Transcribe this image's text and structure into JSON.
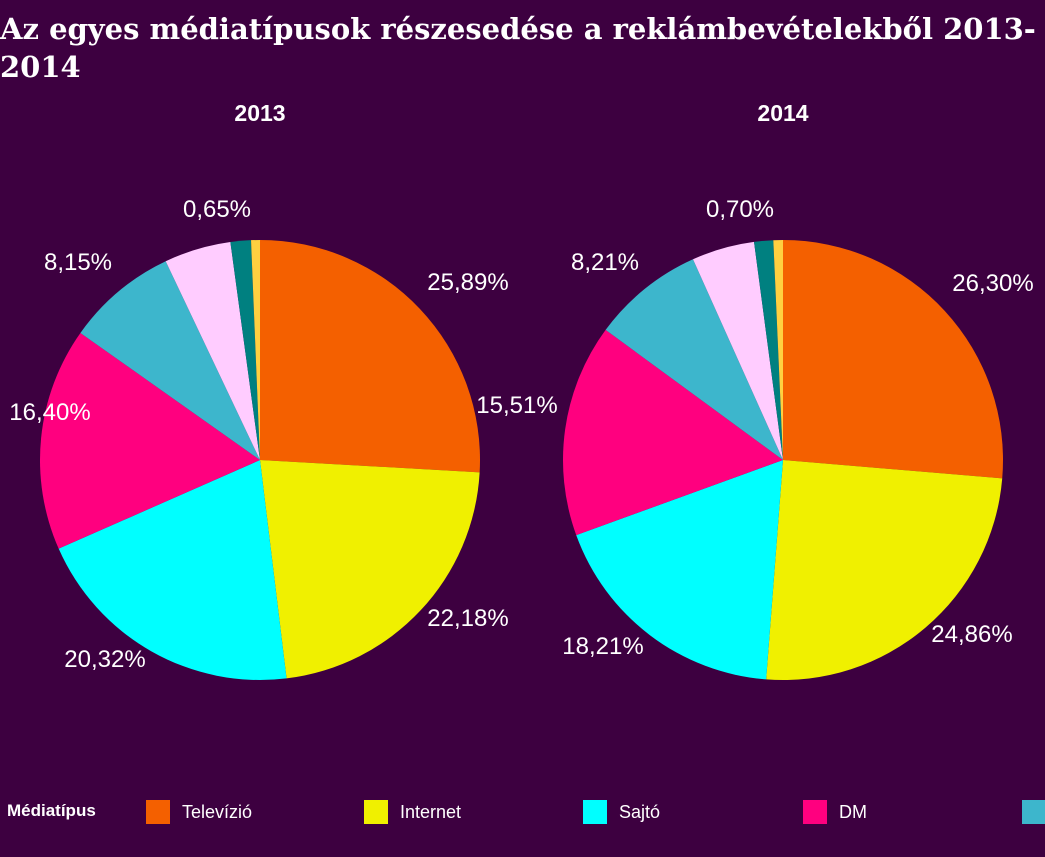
{
  "title": "Az egyes médiatípusok részesedése a reklámbevételekből 2013-2014",
  "legend": {
    "title": "Médiatípus",
    "items": [
      {
        "label": "Televízió",
        "color": "#f46000"
      },
      {
        "label": "Internet",
        "color": "#f0f000"
      },
      {
        "label": "Sajtó",
        "color": "#00ffff"
      },
      {
        "label": "DM",
        "color": "#ff007f"
      },
      {
        "label": "",
        "color": "#3db6cc"
      }
    ]
  },
  "chart_data": [
    {
      "type": "pie",
      "title": "2013",
      "slices": [
        {
          "label": "25,89%",
          "value": 25.89,
          "color": "#f46000"
        },
        {
          "label": "22,18%",
          "value": 22.18,
          "color": "#f0f000"
        },
        {
          "label": "20,32%",
          "value": 20.32,
          "color": "#00ffff"
        },
        {
          "label": "16,40%",
          "value": 16.4,
          "color": "#ff007f"
        },
        {
          "label": "8,15%",
          "value": 8.15,
          "color": "#3db6cc"
        },
        {
          "label": "",
          "value": 4.9,
          "color": "#ffccff"
        },
        {
          "label": "",
          "value": 1.5,
          "color": "#008080"
        },
        {
          "label": "0,65%",
          "value": 0.65,
          "color": "#ffd040"
        }
      ],
      "extra_labels": [
        "15,51%"
      ]
    },
    {
      "type": "pie",
      "title": "2014",
      "slices": [
        {
          "label": "26,30%",
          "value": 26.3,
          "color": "#f46000"
        },
        {
          "label": "24,86%",
          "value": 24.86,
          "color": "#f0f000"
        },
        {
          "label": "18,21%",
          "value": 18.21,
          "color": "#00ffff"
        },
        {
          "label": "",
          "value": 15.6,
          "color": "#ff007f"
        },
        {
          "label": "8,21%",
          "value": 8.21,
          "color": "#3db6cc"
        },
        {
          "label": "",
          "value": 4.6,
          "color": "#ffccff"
        },
        {
          "label": "",
          "value": 1.4,
          "color": "#008080"
        },
        {
          "label": "0,70%",
          "value": 0.7,
          "color": "#ffd040"
        }
      ]
    }
  ]
}
